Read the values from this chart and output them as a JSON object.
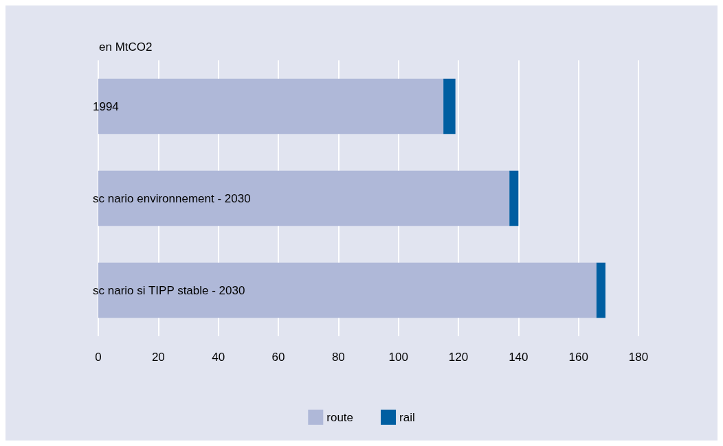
{
  "chart_data": {
    "type": "bar",
    "orientation": "horizontal",
    "stacked": true,
    "ylabel": "en MtCO2",
    "categories": [
      "1994",
      "sc nario environnement - 2030",
      "sc nario si TIPP stable - 2030"
    ],
    "series": [
      {
        "name": "route",
        "color": "#afb8d8",
        "values": [
          115,
          137,
          166
        ]
      },
      {
        "name": "rail",
        "color": "#005ea1",
        "values": [
          4,
          3,
          3
        ]
      }
    ],
    "xlim": [
      0,
      180
    ],
    "xticks": [
      0,
      20,
      40,
      60,
      80,
      100,
      120,
      140,
      160,
      180
    ],
    "grid": "x",
    "legend": "bottom"
  }
}
